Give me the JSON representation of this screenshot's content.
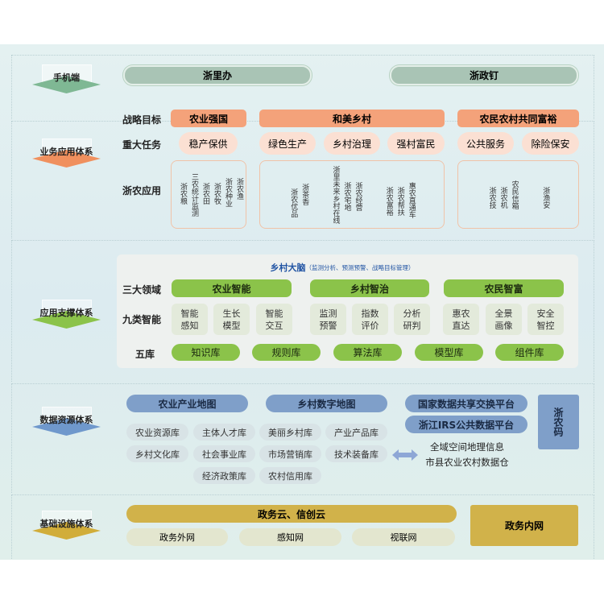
{
  "colors": {
    "orange": "#f4a27a",
    "peach": "#fbe0d3",
    "green": "#8bc34a",
    "blue": "#7f9fc9",
    "gold": "#d1b24a",
    "sage": "#a9c4b5"
  },
  "mobile": {
    "label": "手机端",
    "apps": [
      "浙里办",
      "浙政钉"
    ]
  },
  "business": {
    "label": "业务应用体系",
    "row_labels": [
      "战略目标",
      "重大任务",
      "浙农应用"
    ],
    "goals": [
      "农业强国",
      "和美乡村",
      "农民农村共同富裕"
    ],
    "tasks": [
      "稳产保供",
      "绿色生产",
      "乡村治理",
      "强村富民",
      "公共服务",
      "除险保安"
    ],
    "apps": [
      [
        "浙农粮",
        "三农统计监测",
        "浙农田",
        "浙农牧",
        "浙农种业",
        "浙农渔"
      ],
      [
        "浙农优品",
        "浙茶香",
        "浙里未来乡村在线",
        "浙农宅地",
        "浙农经营",
        "浙农富裕",
        "浙农帮扶",
        "惠农直通车"
      ],
      [
        "浙农技",
        "浙农机",
        "农民信箱",
        "浙渔安"
      ]
    ]
  },
  "support": {
    "label": "应用支撑体系",
    "brain_title": "乡村大脑",
    "brain_sub": "（监测分析、预测预警、战略目标管理）",
    "row_labels": [
      "三大领域",
      "九类智能",
      "五库"
    ],
    "domains": [
      "农业智能",
      "乡村智治",
      "农民智富"
    ],
    "intelligence": [
      "智能感知",
      "生长模型",
      "智能交互",
      "监测预警",
      "指数评价",
      "分析研判",
      "惠农直达",
      "全景画像",
      "安全智控"
    ],
    "libraries": [
      "知识库",
      "规则库",
      "算法库",
      "模型库",
      "组件库"
    ]
  },
  "data": {
    "label": "数据资源体系",
    "maps": [
      "农业产业地图",
      "乡村数字地图"
    ],
    "platforms": [
      "国家数据共享交换平台",
      "浙江IRS公共数据平台"
    ],
    "code": "浙农码",
    "dbs": [
      [
        "农业资源库",
        "主体人才库",
        "美丽乡村库",
        "产业产品库"
      ],
      [
        "乡村文化库",
        "社会事业库",
        "市场营销库",
        "技术装备库"
      ],
      [
        "经济政策库",
        "农村信用库"
      ]
    ],
    "sources": [
      "全域空间地理信息",
      "市县农业农村数据仓"
    ]
  },
  "infra": {
    "label": "基础设施体系",
    "cloud": "政务云、信创云",
    "nets": [
      "政务外网",
      "感知网",
      "视联网"
    ],
    "intranet": "政务内网"
  }
}
